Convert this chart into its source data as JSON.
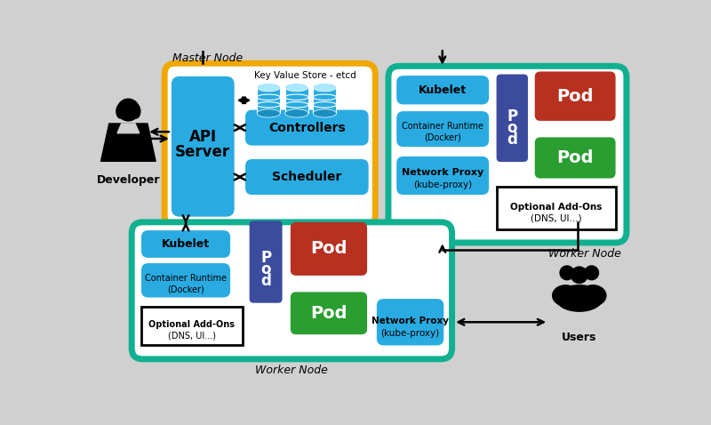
{
  "bg_color": "#d0d0d0",
  "blue_light": "#29abe2",
  "blue_light2": "#5bc8f0",
  "blue_mid": "#1a8fc1",
  "blue_dark": "#3b4c9e",
  "red": "#b83020",
  "green": "#2a9e30",
  "gold": "#f0a800",
  "teal": "#10b090",
  "white": "#ffffff",
  "black": "#000000",
  "gray_box": "#e8e8e8",
  "master_label": "Master Node",
  "worker_label": "Worker Node",
  "api_line1": "API",
  "api_line2": "Server",
  "etcd_label": "Key Value Store - etcd",
  "controllers_label": "Controllers",
  "scheduler_label": "Scheduler",
  "kubelet_label": "Kubelet",
  "cr_line1": "Container Runtime",
  "cr_line2": "(Docker)",
  "netproxy_line1": "Network Proxy",
  "netproxy_line2": "(kube-proxy)",
  "pod_label": "Pod",
  "pod_vert": "P\no\nd",
  "addons_line1": "Optional Add-Ons",
  "addons_line2": "(DNS, UI...)",
  "developer_label": "Developer",
  "users_label": "Users"
}
